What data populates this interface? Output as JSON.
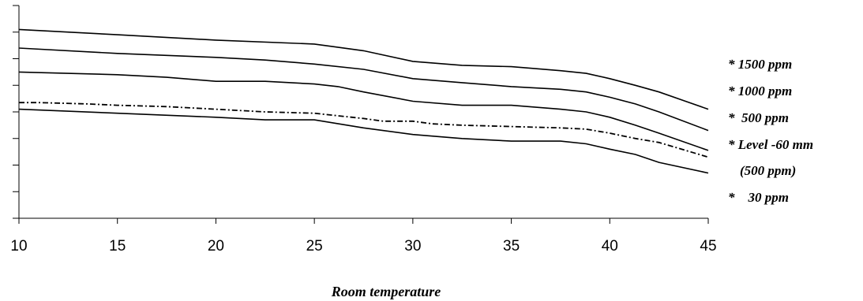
{
  "chart_data": {
    "type": "line",
    "title": "",
    "xlabel": "Room  temperature",
    "ylabel": "",
    "xlim": [
      10,
      45
    ],
    "ylim": [
      0,
      16
    ],
    "x_ticks": [
      "10",
      "15",
      "20",
      "25",
      "30",
      "35",
      "40",
      "45"
    ],
    "grid": false,
    "legend_placement": "right",
    "series": [
      {
        "name": "* 1500 ppm",
        "style": "solid",
        "x": [
          10,
          15,
          20,
          25,
          26,
          27.5,
          30,
          32.5,
          35,
          37.5,
          38.8,
          40,
          41.3,
          42.5,
          45
        ],
        "y": [
          14.2,
          13.8,
          13.4,
          13.1,
          12.9,
          12.6,
          11.8,
          11.5,
          11.4,
          11.1,
          10.9,
          10.5,
          10.0,
          9.5,
          8.2
        ]
      },
      {
        "name": "* 1000 ppm",
        "style": "solid",
        "x": [
          10,
          15,
          20,
          22.5,
          25,
          27.5,
          30,
          32.5,
          35,
          37.5,
          38.8,
          40,
          41.3,
          42.5,
          45
        ],
        "y": [
          12.8,
          12.4,
          12.1,
          11.9,
          11.6,
          11.2,
          10.5,
          10.2,
          9.9,
          9.7,
          9.5,
          9.1,
          8.6,
          8.0,
          6.6
        ]
      },
      {
        "name": "*  500 ppm",
        "style": "solid",
        "x": [
          10,
          15,
          17.5,
          20,
          22.5,
          25,
          26.2,
          27.5,
          30,
          32.5,
          35,
          37.5,
          38.8,
          40,
          41.3,
          42.5,
          45
        ],
        "y": [
          11.0,
          10.8,
          10.6,
          10.3,
          10.3,
          10.1,
          9.9,
          9.5,
          8.8,
          8.5,
          8.5,
          8.2,
          8.0,
          7.6,
          7.0,
          6.4,
          5.1
        ]
      },
      {
        "name": "* Level -60 mm",
        "name_line2": "(500 ppm)",
        "style": "dashdot",
        "x": [
          10,
          11,
          13.5,
          15,
          17.5,
          20,
          22.5,
          25,
          27.5,
          28.5,
          30,
          31,
          32.5,
          35,
          37.5,
          38.8,
          40,
          41.3,
          42.5,
          45
        ],
        "y": [
          8.7,
          8.7,
          8.6,
          8.5,
          8.4,
          8.2,
          8.0,
          7.9,
          7.5,
          7.3,
          7.3,
          7.1,
          7.0,
          6.9,
          6.8,
          6.7,
          6.4,
          6.0,
          5.7,
          4.6
        ]
      },
      {
        "name": "*    30 ppm",
        "style": "solid",
        "x": [
          10,
          15,
          20,
          22.5,
          25,
          27.5,
          30,
          32.5,
          35,
          37.5,
          38.8,
          40,
          41.3,
          42.5,
          45
        ],
        "y": [
          8.2,
          7.9,
          7.6,
          7.4,
          7.4,
          6.8,
          6.3,
          6.0,
          5.8,
          5.8,
          5.6,
          5.2,
          4.8,
          4.2,
          3.4
        ]
      }
    ]
  }
}
